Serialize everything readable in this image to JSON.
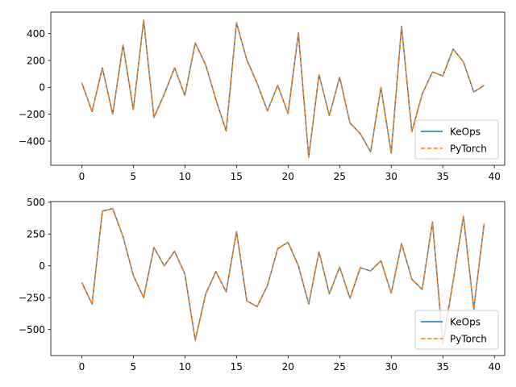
{
  "chart_data": [
    {
      "type": "line",
      "title": "",
      "xlabel": "",
      "ylabel": "",
      "xlim": [
        -3,
        41
      ],
      "ylim": [
        -580,
        560
      ],
      "xticks": [
        0,
        5,
        10,
        15,
        20,
        25,
        30,
        35,
        40
      ],
      "yticks": [
        -400,
        -200,
        0,
        200,
        400
      ],
      "x": [
        0,
        1,
        2,
        3,
        4,
        5,
        6,
        7,
        8,
        9,
        10,
        11,
        12,
        13,
        14,
        15,
        16,
        17,
        18,
        19,
        20,
        21,
        22,
        23,
        24,
        25,
        26,
        27,
        28,
        29,
        30,
        31,
        32,
        33,
        34,
        35,
        36,
        37,
        38,
        39
      ],
      "series": [
        {
          "name": "KeOps",
          "color": "#1f77b4",
          "style": "solid",
          "values": [
            35,
            -180,
            145,
            -200,
            315,
            -165,
            500,
            -225,
            -50,
            145,
            -60,
            330,
            170,
            -90,
            -325,
            480,
            205,
            30,
            -175,
            15,
            -195,
            405,
            -520,
            95,
            -210,
            75,
            -265,
            -345,
            -480,
            0,
            -490,
            455,
            -330,
            -50,
            115,
            85,
            285,
            190,
            -35,
            15
          ]
        },
        {
          "name": "PyTorch",
          "color": "#ff7f0e",
          "style": "dashed",
          "values": [
            35,
            -180,
            145,
            -200,
            315,
            -165,
            500,
            -225,
            -50,
            145,
            -60,
            330,
            170,
            -90,
            -325,
            480,
            205,
            30,
            -175,
            15,
            -195,
            405,
            -520,
            95,
            -210,
            75,
            -265,
            -345,
            -480,
            0,
            -490,
            455,
            -330,
            -50,
            115,
            85,
            285,
            190,
            -35,
            15
          ]
        }
      ],
      "legend": "lower-right",
      "grid": false
    },
    {
      "type": "line",
      "title": "",
      "xlabel": "",
      "ylabel": "",
      "xlim": [
        -3,
        41
      ],
      "ylim": [
        -705,
        505
      ],
      "xticks": [
        0,
        5,
        10,
        15,
        20,
        25,
        30,
        35,
        40
      ],
      "yticks": [
        -500,
        -250,
        0,
        250,
        500
      ],
      "x": [
        0,
        1,
        2,
        3,
        4,
        5,
        6,
        7,
        8,
        9,
        10,
        11,
        12,
        13,
        14,
        15,
        16,
        17,
        18,
        19,
        20,
        21,
        22,
        23,
        24,
        25,
        26,
        27,
        28,
        29,
        30,
        31,
        32,
        33,
        34,
        35,
        36,
        37,
        38,
        39
      ],
      "series": [
        {
          "name": "KeOps",
          "color": "#1f77b4",
          "style": "solid",
          "values": [
            -130,
            -300,
            430,
            450,
            230,
            -75,
            -250,
            145,
            0,
            115,
            -65,
            -585,
            -225,
            -45,
            -205,
            270,
            -275,
            -320,
            -155,
            135,
            185,
            0,
            -300,
            110,
            -220,
            -10,
            -255,
            -15,
            -40,
            40,
            -215,
            175,
            -105,
            -185,
            345,
            -610,
            -120,
            390,
            -340,
            330
          ]
        },
        {
          "name": "PyTorch",
          "color": "#ff7f0e",
          "style": "dashed",
          "values": [
            -130,
            -300,
            430,
            450,
            230,
            -75,
            -250,
            145,
            0,
            115,
            -65,
            -585,
            -225,
            -45,
            -205,
            270,
            -275,
            -320,
            -155,
            135,
            185,
            0,
            -300,
            110,
            -220,
            -10,
            -255,
            -15,
            -40,
            40,
            -215,
            175,
            -105,
            -185,
            345,
            -610,
            -120,
            390,
            -340,
            330
          ]
        }
      ],
      "legend": "lower-right",
      "grid": false
    }
  ]
}
